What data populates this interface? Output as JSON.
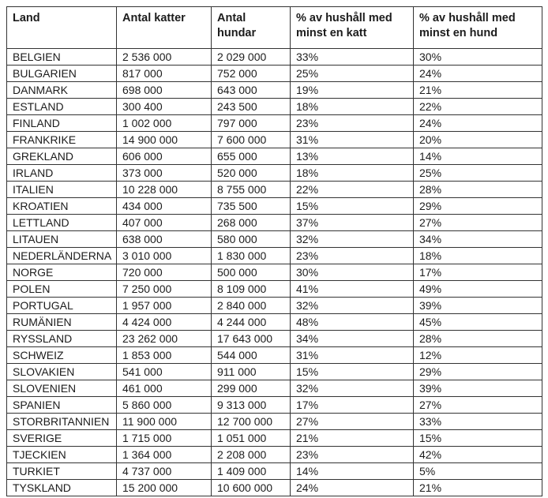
{
  "table": {
    "headers": [
      "Land",
      "Antal katter",
      "Antal hundar",
      "% av hushåll med minst en katt",
      "% av hushåll med minst en hund"
    ],
    "rows": [
      [
        "BELGIEN",
        "2 536 000",
        "2 029 000",
        "33%",
        "30%"
      ],
      [
        "BULGARIEN",
        "817 000",
        "752 000",
        "25%",
        "24%"
      ],
      [
        "DANMARK",
        "698 000",
        "643 000",
        "19%",
        "21%"
      ],
      [
        "ESTLAND",
        "300 400",
        "243 500",
        "18%",
        "22%"
      ],
      [
        "FINLAND",
        "1 002 000",
        "797 000",
        "23%",
        "24%"
      ],
      [
        "FRANKRIKE",
        "14 900 000",
        "7 600 000",
        "31%",
        "20%"
      ],
      [
        "GREKLAND",
        "606 000",
        "655 000",
        "13%",
        "14%"
      ],
      [
        "IRLAND",
        "373 000",
        "520 000",
        "18%",
        "25%"
      ],
      [
        "ITALIEN",
        "10 228 000",
        "8 755 000",
        "22%",
        "28%"
      ],
      [
        "KROATIEN",
        "434 000",
        "735 500",
        "15%",
        "29%"
      ],
      [
        "LETTLAND",
        "407 000",
        "268 000",
        "37%",
        "27%"
      ],
      [
        "LITAUEN",
        "638 000",
        "580 000",
        "32%",
        "34%"
      ],
      [
        "NEDERLÄNDERNA",
        "3 010 000",
        "1 830 000",
        "23%",
        "18%"
      ],
      [
        "NORGE",
        "720 000",
        "500 000",
        "30%",
        "17%"
      ],
      [
        "POLEN",
        "7 250 000",
        "8 109 000",
        "41%",
        "49%"
      ],
      [
        "PORTUGAL",
        "1 957 000",
        "2 840 000",
        "32%",
        "39%"
      ],
      [
        "RUMÄNIEN",
        "4 424 000",
        "4 244 000",
        "48%",
        "45%"
      ],
      [
        "RYSSLAND",
        "23 262 000",
        "17 643 000",
        "34%",
        "28%"
      ],
      [
        "SCHWEIZ",
        "1 853 000",
        "544 000",
        "31%",
        "12%"
      ],
      [
        "SLOVAKIEN",
        "541 000",
        "911 000",
        "15%",
        "29%"
      ],
      [
        "SLOVENIEN",
        "461 000",
        "299 000",
        "32%",
        "39%"
      ],
      [
        "SPANIEN",
        "5 860 000",
        "9 313 000",
        "17%",
        "27%"
      ],
      [
        "STORBRITANNIEN",
        "11 900 000",
        "12 700 000",
        "27%",
        "33%"
      ],
      [
        "SVERIGE",
        "1 715 000",
        "1 051 000",
        "21%",
        "15%"
      ],
      [
        "TJECKIEN",
        "1 364 000",
        "2 208 000",
        "23%",
        "42%"
      ],
      [
        "TURKIET",
        "4 737 000",
        "1 409 000",
        "14%",
        "5%"
      ],
      [
        "TYSKLAND",
        "15 200 000",
        "10 600 000",
        "24%",
        "21%"
      ]
    ]
  },
  "colors": {
    "border": "#333333",
    "text": "#1c1c1c",
    "background": "#ffffff"
  }
}
